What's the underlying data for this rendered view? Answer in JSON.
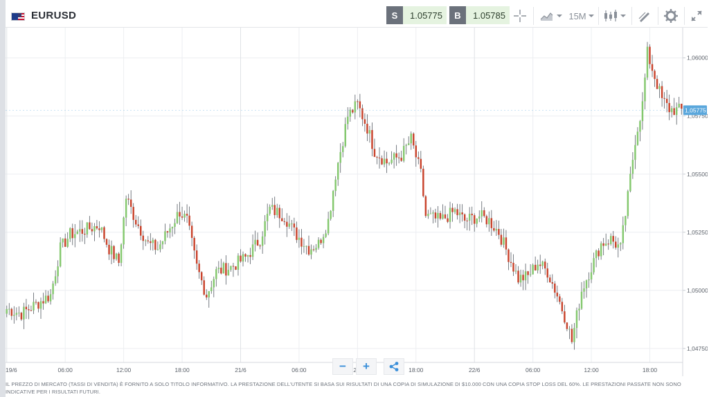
{
  "header": {
    "symbol": "EURUSD",
    "flag_icon": "eur-usd-flag-icon",
    "sell": {
      "label": "S",
      "price": "1.05775"
    },
    "buy": {
      "label": "B",
      "price": "1.05785"
    },
    "tools": {
      "crosshair_icon": "crosshair-icon",
      "chart_type_icon": "area-chart-icon",
      "timeframe": "15M",
      "candles_icon": "candlestick-icon",
      "draw_icon": "draw-tool-icon",
      "settings_icon": "gear-icon",
      "fullscreen_icon": "expand-icon"
    }
  },
  "colors": {
    "up": "#84c86e",
    "down": "#c9432c",
    "current_price": "#5aa7dc",
    "grid": "#eceef1"
  },
  "zoom": {
    "out": "−",
    "in": "+",
    "share_icon": "share-icon"
  },
  "disclaimer": "IL PREZZO DI MERCATO (TASSI DI VENDITA) È FORNITO A SOLO TITOLO INFORMATIVO. LA PRESTAZIONE DELL'UTENTE SI BASA SUI RISULTATI DI UNA COPIA DI SIMULAZIONE DI $10.000 CON UNA COPIA STOP LOSS DEL 60%. LE PRESTAZIONI PASSATE NON SONO INDICATIVE PER I RISULTATI FUTURI.",
  "chart_data": {
    "type": "candlestick",
    "title": "EURUSD",
    "timeframe": "15M",
    "y_ticks": [
      1.0475,
      1.05,
      1.0525,
      1.055,
      1.0575,
      1.06
    ],
    "y_tick_labels": [
      "1,04750",
      "1,05000",
      "1,05250",
      "1,05500",
      "1,05750",
      "1,06000"
    ],
    "ylim": [
      1.0469,
      1.0613
    ],
    "x_ticks": [
      {
        "label": "19/6",
        "i": 0
      },
      {
        "label": "06:00",
        "i": 24
      },
      {
        "label": "12:00",
        "i": 48
      },
      {
        "label": "18:00",
        "i": 72
      },
      {
        "label": "21/6",
        "i": 96
      },
      {
        "label": "06:00",
        "i": 120
      },
      {
        "label": "12:00",
        "i": 144
      },
      {
        "label": "18:00",
        "i": 168
      },
      {
        "label": "22/6",
        "i": 192
      },
      {
        "label": "06:00",
        "i": 216
      },
      {
        "label": "12:00",
        "i": 240
      },
      {
        "label": "18:00",
        "i": 264
      }
    ],
    "current_price": 1.05775,
    "current_price_label": "1,05775",
    "anchors": [
      [
        0,
        1.0492
      ],
      [
        6,
        1.049
      ],
      [
        12,
        1.0494
      ],
      [
        18,
        1.0498
      ],
      [
        22,
        1.0518
      ],
      [
        26,
        1.0524
      ],
      [
        32,
        1.0526
      ],
      [
        38,
        1.0528
      ],
      [
        42,
        1.0518
      ],
      [
        46,
        1.0512
      ],
      [
        49,
        1.054
      ],
      [
        53,
        1.053
      ],
      [
        58,
        1.052
      ],
      [
        62,
        1.0518
      ],
      [
        67,
        1.0527
      ],
      [
        71,
        1.0534
      ],
      [
        74,
        1.053
      ],
      [
        78,
        1.051
      ],
      [
        82,
        1.0498
      ],
      [
        86,
        1.0508
      ],
      [
        92,
        1.051
      ],
      [
        98,
        1.0514
      ],
      [
        104,
        1.0522
      ],
      [
        108,
        1.0535
      ],
      [
        114,
        1.0532
      ],
      [
        118,
        1.0525
      ],
      [
        124,
        1.0518
      ],
      [
        128,
        1.052
      ],
      [
        132,
        1.053
      ],
      [
        135,
        1.055
      ],
      [
        140,
        1.0575
      ],
      [
        144,
        1.058
      ],
      [
        148,
        1.057
      ],
      [
        151,
        1.056
      ],
      [
        156,
        1.0555
      ],
      [
        162,
        1.0558
      ],
      [
        166,
        1.0565
      ],
      [
        170,
        1.055
      ],
      [
        172,
        1.0532
      ],
      [
        178,
        1.053
      ],
      [
        184,
        1.0534
      ],
      [
        188,
        1.053
      ],
      [
        194,
        1.0532
      ],
      [
        198,
        1.053
      ],
      [
        202,
        1.0525
      ],
      [
        206,
        1.0515
      ],
      [
        210,
        1.0505
      ],
      [
        214,
        1.0506
      ],
      [
        218,
        1.0512
      ],
      [
        222,
        1.0508
      ],
      [
        226,
        1.0498
      ],
      [
        230,
        1.0486
      ],
      [
        232,
        1.0478
      ],
      [
        236,
        1.05
      ],
      [
        240,
        1.051
      ],
      [
        244,
        1.052
      ],
      [
        248,
        1.0522
      ],
      [
        252,
        1.0518
      ],
      [
        255,
        1.054
      ],
      [
        258,
        1.0565
      ],
      [
        261,
        1.058
      ],
      [
        263,
        1.0602
      ],
      [
        266,
        1.0592
      ],
      [
        269,
        1.0582
      ],
      [
        272,
        1.0578
      ],
      [
        275,
        1.05775
      ]
    ]
  }
}
